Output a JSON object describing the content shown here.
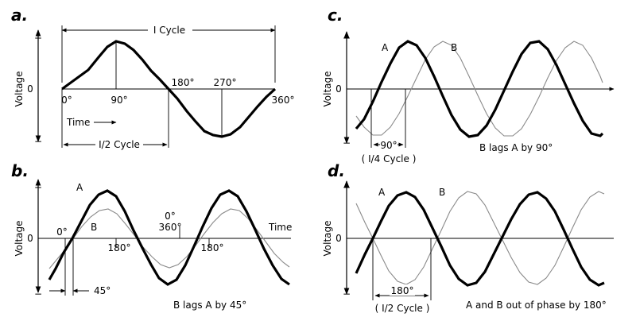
{
  "axis_label": "Voltage",
  "plus": "+",
  "minus": "−",
  "zero": "0",
  "panel_a": {
    "letter": "a.",
    "cycle_label": "I Cycle",
    "half_cycle_label": "I/2 Cycle",
    "time_label": "Time",
    "deg_0": "0°",
    "deg_90": "90°",
    "deg_180": "180°",
    "deg_270": "270°",
    "deg_360": "360°"
  },
  "panel_b": {
    "letter": "b.",
    "label_a": "A",
    "label_b": "B",
    "deg_0_left": "0°",
    "deg_180_left": "180°",
    "deg_0_right": "0°",
    "deg_360_right": "360°",
    "deg_180_right": "180°",
    "time_label": "Time",
    "shift_label": "45°",
    "caption": "B lags A by 45°"
  },
  "panel_c": {
    "letter": "c.",
    "label_a": "A",
    "label_b": "B",
    "shift_label": "90°",
    "shift_sub": "( I/4 Cycle )",
    "caption": "B lags A by 90°"
  },
  "panel_d": {
    "letter": "d.",
    "label_a": "A",
    "label_b": "B",
    "shift_label": "180°",
    "shift_sub": "( I/2 Cycle )",
    "caption": "A and B out of phase by 180°"
  },
  "colors": {
    "wave_a": "#000000",
    "wave_b": "#8a8a8a"
  }
}
